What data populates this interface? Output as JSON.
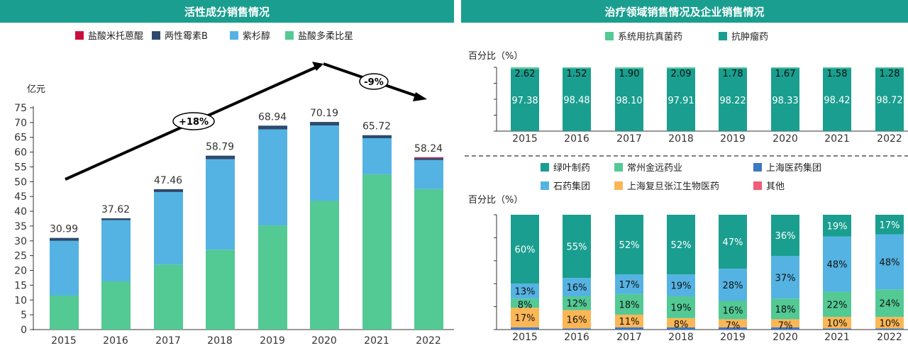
{
  "left_title": "活性成分销售情况",
  "right_title": "治疗领域销售情况及企业销售情况",
  "colors": {
    "header": "#1a9e8f"
  },
  "chart_data": [
    {
      "type": "bar",
      "stacked": true,
      "title": "活性成分销售情况",
      "ylabel": "亿元",
      "ylim": [
        0,
        75
      ],
      "yticks": [
        0,
        5,
        10,
        15,
        20,
        25,
        30,
        35,
        40,
        45,
        50,
        55,
        60,
        65,
        70,
        75
      ],
      "categories": [
        "2015",
        "2016",
        "2017",
        "2018",
        "2019",
        "2020",
        "2021",
        "2022"
      ],
      "series": [
        {
          "name": "盐酸多柔比星",
          "color": "#53c994",
          "values": [
            11.5,
            16.3,
            22.0,
            27.0,
            35.2,
            43.5,
            52.5,
            47.5
          ]
        },
        {
          "name": "紫杉醇",
          "color": "#55b3e3",
          "values": [
            18.5,
            20.7,
            24.5,
            30.6,
            32.5,
            25.5,
            12.2,
            9.8
          ]
        },
        {
          "name": "两性霉素B",
          "color": "#2d4a6e",
          "values": [
            0.99,
            0.62,
            0.96,
            1.19,
            1.24,
            1.19,
            1.02,
            0.64
          ]
        },
        {
          "name": "盐酸米托蒽醌",
          "color": "#c8103f",
          "values": [
            0,
            0,
            0,
            0,
            0,
            0,
            0,
            0.3
          ]
        }
      ],
      "totals": [
        "30.99",
        "37.62",
        "47.46",
        "58.79",
        "68.94",
        "70.19",
        "65.72",
        "58.24"
      ],
      "legend_order": [
        "盐酸米托蒽醌",
        "两性霉素B",
        "紫杉醇",
        "盐酸多柔比星"
      ],
      "annotations": [
        "+18%",
        "-9%"
      ]
    },
    {
      "type": "bar",
      "stacked": true,
      "title": "治疗领域销售情况",
      "ylabel": "百分比（%）",
      "ylim": [
        0,
        100
      ],
      "categories": [
        "2015",
        "2016",
        "2017",
        "2018",
        "2019",
        "2020",
        "2021",
        "2022"
      ],
      "series": [
        {
          "name": "抗肿瘤药",
          "color": "#1a9e8f",
          "values": [
            97.38,
            98.48,
            98.1,
            97.91,
            98.22,
            98.33,
            98.42,
            98.72
          ],
          "labels": [
            "97.38",
            "98.48",
            "98.10",
            "97.91",
            "98.22",
            "98.33",
            "98.42",
            "98.72"
          ]
        },
        {
          "name": "系统用抗真菌药",
          "color": "#53c994",
          "values": [
            2.62,
            1.52,
            1.9,
            2.09,
            1.78,
            1.67,
            1.58,
            1.28
          ],
          "labels": [
            "2.62",
            "1.52",
            "1.90",
            "2.09",
            "1.78",
            "1.67",
            "1.58",
            "1.28"
          ]
        }
      ],
      "legend_order": [
        "系统用抗真菌药",
        "抗肿瘤药"
      ]
    },
    {
      "type": "bar",
      "stacked": true,
      "title": "企业销售情况",
      "ylabel": "百分比（%）",
      "ylim": [
        0,
        100
      ],
      "categories": [
        "2015",
        "2016",
        "2017",
        "2018",
        "2019",
        "2020",
        "2021",
        "2022"
      ],
      "series": [
        {
          "name": "上海医药集团",
          "color": "#3d78c2",
          "values": [
            2,
            1,
            2,
            2,
            2,
            2,
            1,
            1
          ],
          "labels": [
            "",
            "",
            "",
            "",
            "",
            "",
            "",
            ""
          ]
        },
        {
          "name": "上海复旦张江生物医药",
          "color": "#fbb656",
          "values": [
            17,
            16,
            11,
            8,
            7,
            7,
            10,
            10
          ],
          "labels": [
            "17%",
            "16%",
            "11%",
            "8%",
            "7%",
            "7%",
            "10%",
            "10%"
          ]
        },
        {
          "name": "常州金远药业",
          "color": "#53c994",
          "values": [
            8,
            12,
            18,
            19,
            16,
            18,
            22,
            24
          ],
          "labels": [
            "8%",
            "12%",
            "18%",
            "19%",
            "16%",
            "18%",
            "22%",
            "24%"
          ]
        },
        {
          "name": "石药集团",
          "color": "#55b3e3",
          "values": [
            13,
            16,
            17,
            19,
            28,
            37,
            48,
            48
          ],
          "labels": [
            "13%",
            "16%",
            "17%",
            "19%",
            "28%",
            "37%",
            "48%",
            "48%"
          ]
        },
        {
          "name": "绿叶制药",
          "color": "#1a9e8f",
          "values": [
            60,
            55,
            52,
            52,
            47,
            36,
            19,
            17
          ],
          "labels": [
            "60%",
            "55%",
            "52%",
            "52%",
            "47%",
            "36%",
            "19%",
            "17%"
          ]
        },
        {
          "name": "其他",
          "color": "#ef5d79",
          "values": [
            0,
            0,
            0,
            0,
            0,
            0,
            0,
            0
          ],
          "labels": [
            "",
            "",
            "",
            "",
            "",
            "",
            "",
            ""
          ]
        }
      ],
      "legend_order": [
        "绿叶制药",
        "常州金远药业",
        "上海医药集团",
        "石药集团",
        "上海复旦张江生物医药",
        "其他"
      ]
    }
  ]
}
